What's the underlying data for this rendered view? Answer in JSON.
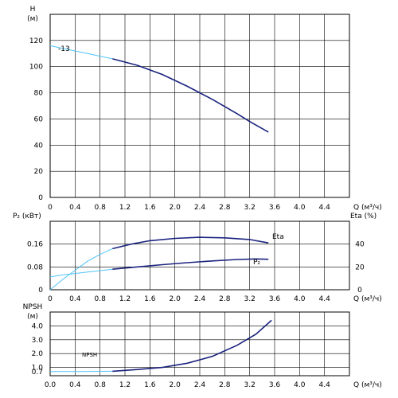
{
  "chart_data": [
    {
      "type": "line",
      "name": "head",
      "ylabel_lines": [
        "H",
        "(м)"
      ],
      "xlabel": "Q (м³/ч)",
      "xlim": [
        0,
        4.8
      ],
      "ylim": [
        0,
        140
      ],
      "xticks": [
        0.0,
        0.4,
        0.8,
        1.2,
        1.6,
        2.0,
        2.4,
        2.8,
        3.2,
        3.6,
        4.0,
        4.4
      ],
      "xtick_labels": [
        "0",
        "0.4",
        "0.8",
        "1.2",
        "1.6",
        "2.0",
        "2.4",
        "2.8",
        "3.2",
        "3.6",
        "4.0",
        "4.4"
      ],
      "yticks": [
        0,
        20,
        40,
        60,
        80,
        100,
        120
      ],
      "ytick_labels": [
        "0",
        "20",
        "40",
        "60",
        "80",
        "100",
        "120"
      ],
      "grid": true,
      "series": [
        {
          "name": "-13",
          "x_extension": [
            0,
            0.2,
            0.4,
            0.6,
            0.8,
            1.0
          ],
          "y_extension": [
            116,
            114,
            112,
            110,
            108,
            106
          ],
          "x": [
            1.0,
            1.4,
            1.8,
            2.2,
            2.6,
            3.0,
            3.2,
            3.5
          ],
          "y": [
            106,
            101,
            94,
            85,
            75,
            64,
            58,
            50
          ]
        }
      ]
    },
    {
      "type": "line",
      "name": "power-efficiency",
      "ylabel": "P₂ (кВт)",
      "ylabel_right": "Eta (%)",
      "xlabel": "Q (м³/ч)",
      "xlim": [
        0,
        4.8
      ],
      "ylim": [
        0,
        0.24
      ],
      "ylim_right": [
        0,
        60
      ],
      "xticks": [
        0.0,
        0.4,
        0.8,
        1.2,
        1.6,
        2.0,
        2.4,
        2.8,
        3.2,
        3.6,
        4.0,
        4.4
      ],
      "xtick_labels": [
        "0",
        "0.4",
        "0.8",
        "1.2",
        "1.6",
        "2.0",
        "2.4",
        "2.8",
        "3.2",
        "3.6",
        "4.0",
        "4.4"
      ],
      "yticks": [
        0,
        0.08,
        0.16
      ],
      "ytick_labels": [
        "0",
        "0.08",
        "0.16"
      ],
      "yticks_right": [
        0,
        20,
        40
      ],
      "ytick_labels_right": [
        "0",
        "20",
        "40"
      ],
      "grid": true,
      "series": [
        {
          "name": "Eta",
          "axis": "right",
          "x_extension": [
            0,
            0.2,
            0.4,
            0.6,
            0.8,
            1.0
          ],
          "y_extension": [
            0,
            9,
            17,
            25,
            31,
            36
          ],
          "x": [
            1.0,
            1.3,
            1.6,
            2.0,
            2.4,
            2.8,
            3.2,
            3.5
          ],
          "y": [
            36,
            40,
            43,
            45,
            46,
            45.5,
            44,
            41
          ]
        },
        {
          "name": "P₂",
          "axis": "left",
          "x_extension": [
            0,
            0.2,
            0.4,
            0.6,
            0.8,
            1.0
          ],
          "y_extension": [
            0.045,
            0.052,
            0.057,
            0.062,
            0.067,
            0.072
          ],
          "x": [
            1.0,
            1.4,
            1.8,
            2.2,
            2.6,
            3.0,
            3.3,
            3.5
          ],
          "y": [
            0.072,
            0.08,
            0.088,
            0.095,
            0.101,
            0.106,
            0.108,
            0.107
          ]
        }
      ]
    },
    {
      "type": "line",
      "name": "npsh",
      "ylabel_lines": [
        "NPSH",
        "(м)"
      ],
      "xlabel": "Q (м³/ч)",
      "xlim": [
        0,
        4.8
      ],
      "ylim": [
        0.4,
        5.0
      ],
      "xticks": [
        0.0,
        0.4,
        0.8,
        1.2,
        1.6,
        2.0,
        2.4,
        2.8,
        3.2,
        3.6,
        4.0,
        4.4
      ],
      "xtick_labels": [
        "0.0",
        "0.4",
        "0.8",
        "1.2",
        "1.6",
        "2.0",
        "2.4",
        "2.8",
        "3.2",
        "3.6",
        "4.0",
        "4.4"
      ],
      "yticks": [
        1.0,
        2.0,
        3.0,
        4.0
      ],
      "ytick_labels": [
        "1.0",
        "2.0",
        "3.0",
        "4.0"
      ],
      "yticks_extra": [
        0.7
      ],
      "ytick_labels_extra": [
        "0.7"
      ],
      "grid": true,
      "series": [
        {
          "name": "NPSH",
          "x_extension": [
            0,
            0.5,
            1.0
          ],
          "y_extension": [
            0.7,
            0.7,
            0.72
          ],
          "x": [
            1.0,
            1.4,
            1.8,
            2.2,
            2.6,
            3.0,
            3.3,
            3.55
          ],
          "y": [
            0.72,
            0.85,
            1.0,
            1.3,
            1.8,
            2.6,
            3.4,
            4.4
          ]
        }
      ]
    }
  ]
}
